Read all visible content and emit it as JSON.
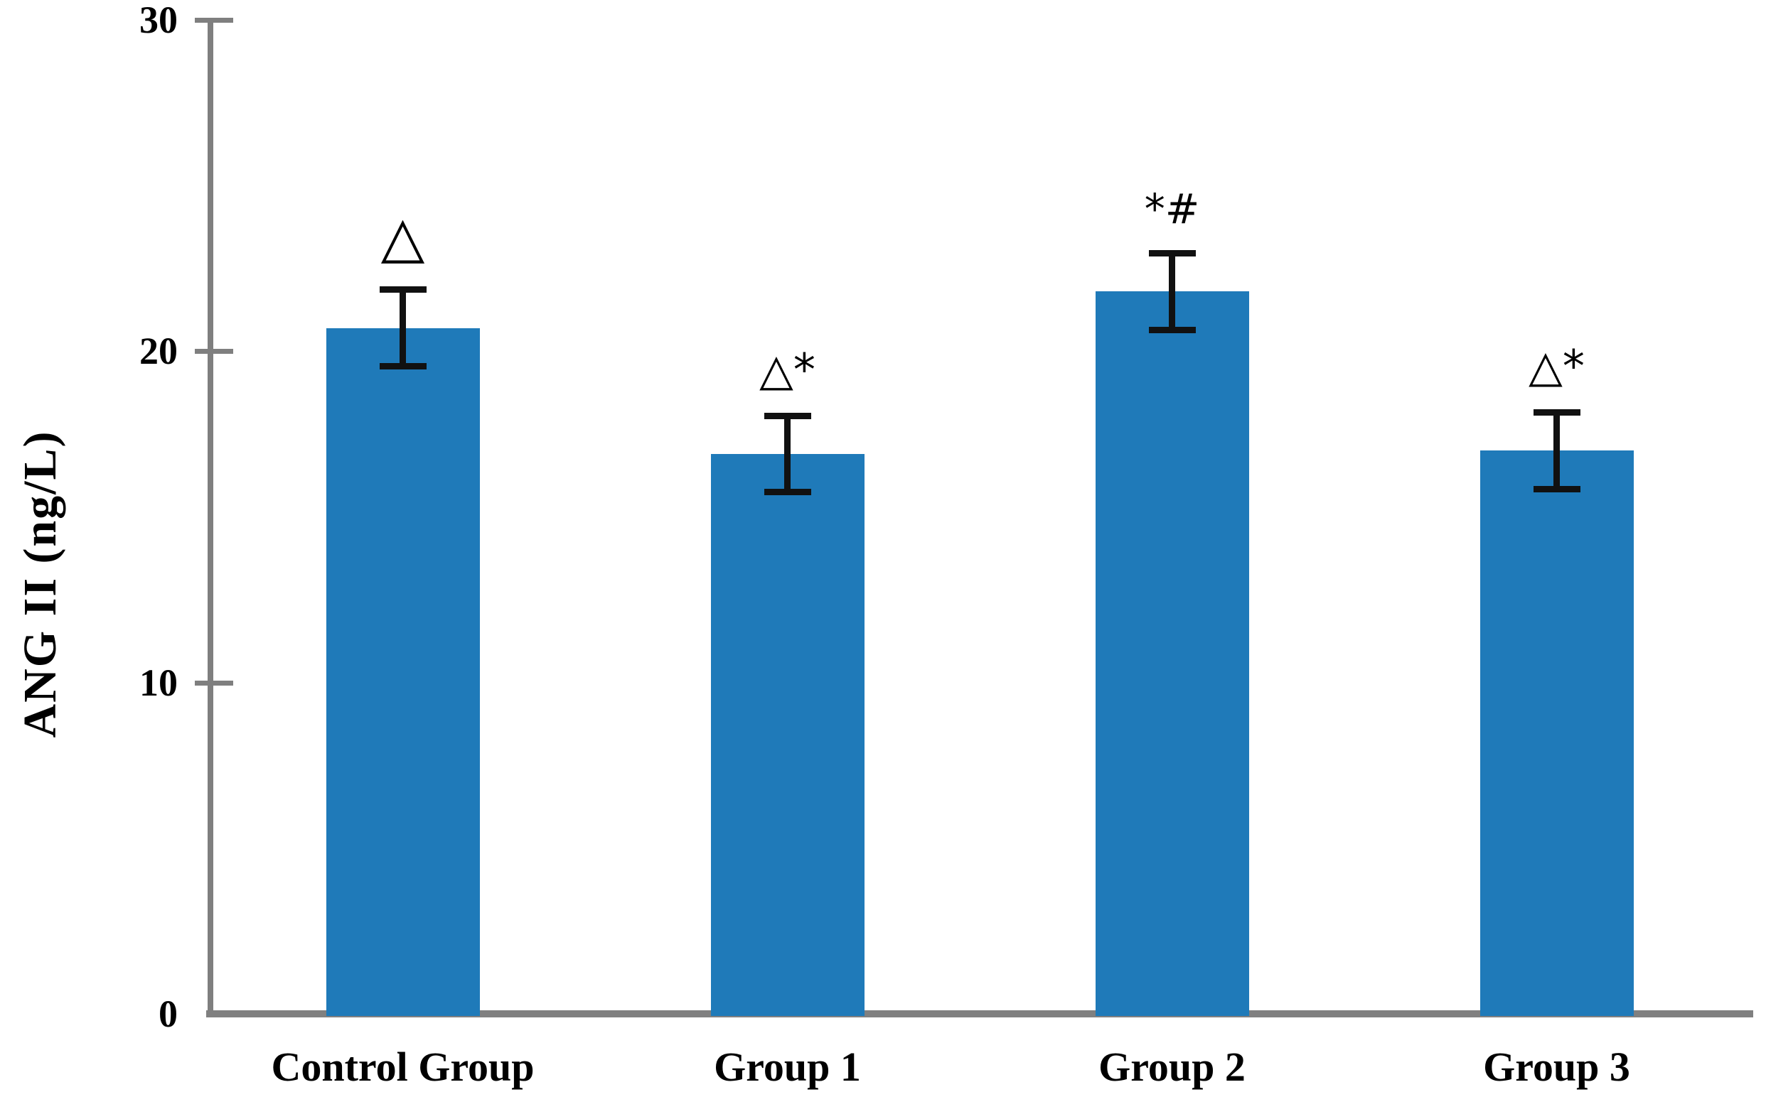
{
  "chart_data": {
    "type": "bar",
    "title": "",
    "xlabel": "",
    "ylabel": "ANG II (ng/L)",
    "categories": [
      "Control Group",
      "Group 1",
      "Group 2",
      "Group 3"
    ],
    "values": [
      20.7,
      16.9,
      21.8,
      17.0
    ],
    "errors": [
      1.1,
      1.1,
      1.1,
      1.1
    ],
    "annotations": [
      "△",
      "△*",
      "*#",
      "△*"
    ],
    "annotation_font_px": [
      80,
      62,
      58,
      62
    ],
    "yticks": [
      0,
      10,
      20,
      30
    ],
    "ylim": [
      0,
      30
    ],
    "grid": false,
    "legend": null,
    "bar_color": "#1f7ab9",
    "axis_color": "#7f7f7f",
    "error_bar_color": "#111111",
    "text_color": "#000000"
  }
}
